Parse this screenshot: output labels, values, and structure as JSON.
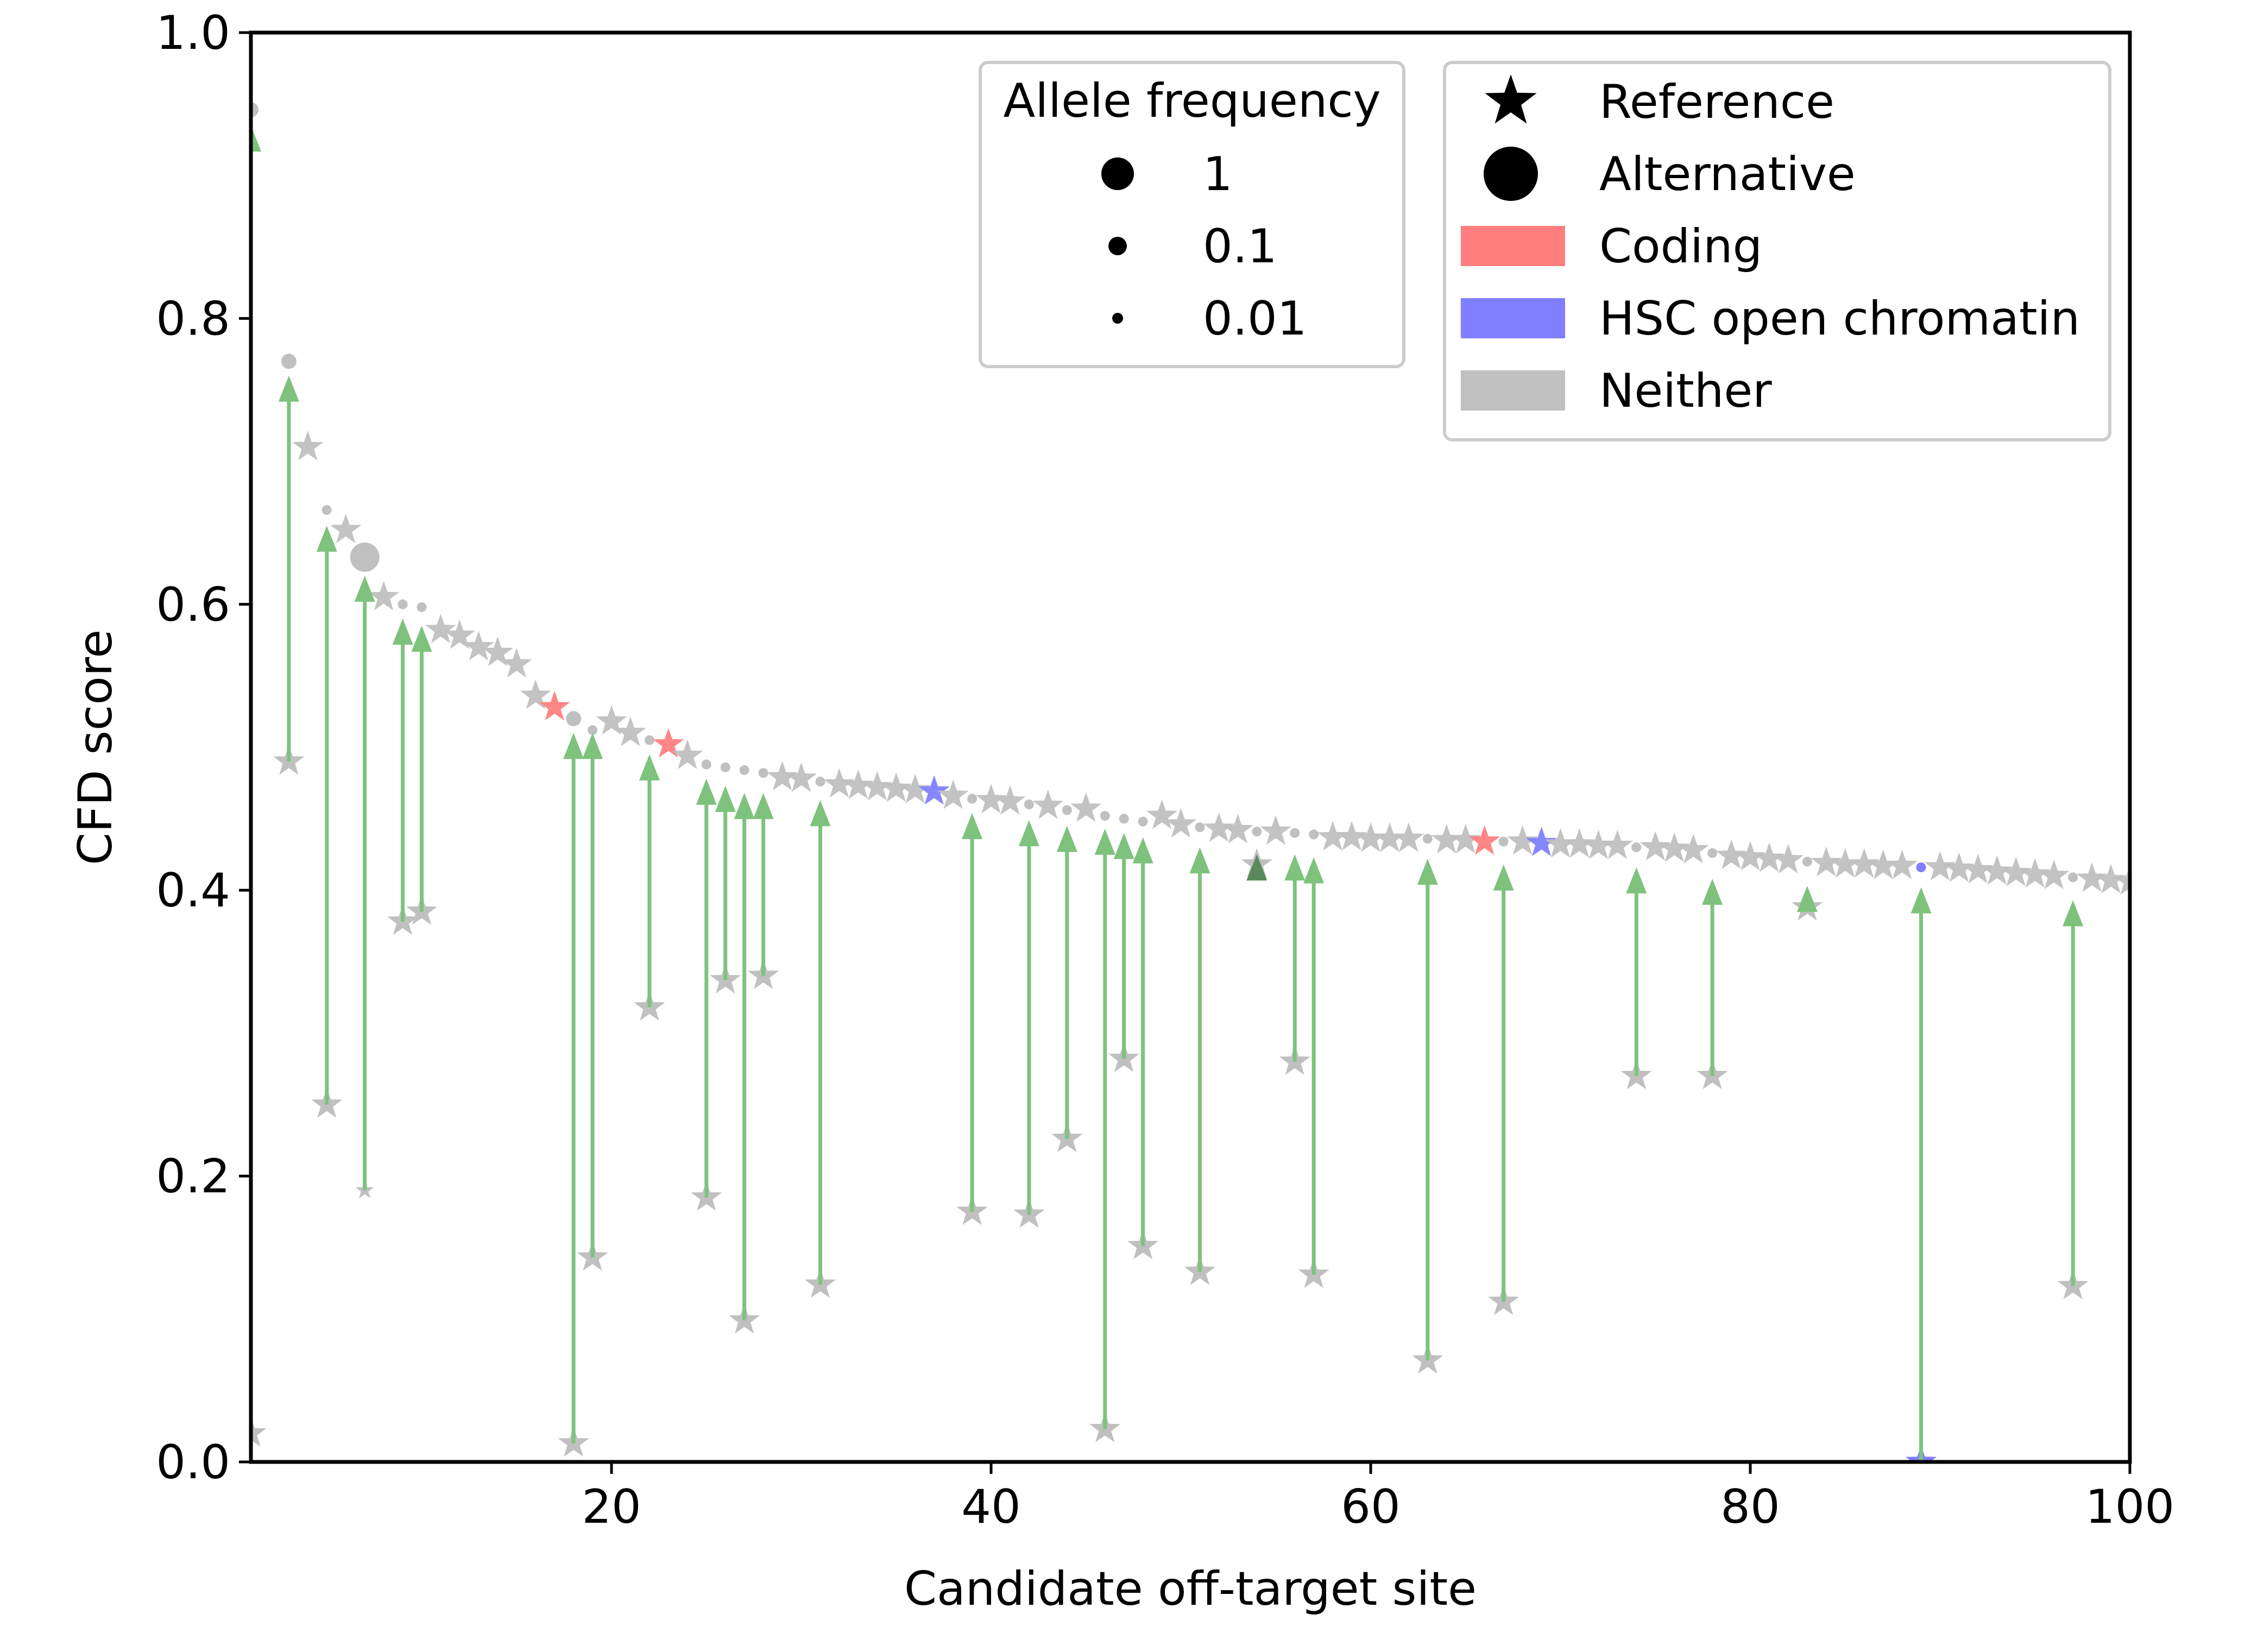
{
  "chart_data": {
    "type": "scatter",
    "title": "",
    "xlabel": "Candidate off-target site",
    "ylabel": "CFD score",
    "xlim": [
      1,
      100
    ],
    "ylim": [
      0.0,
      1.0
    ],
    "x_ticks": [
      20,
      40,
      60,
      80,
      100
    ],
    "x_tick_labels": [
      "20",
      "40",
      "60",
      "80",
      "100"
    ],
    "y_ticks": [
      0.0,
      0.2,
      0.4,
      0.6,
      0.8,
      1.0
    ],
    "y_tick_labels": [
      "0.0",
      "0.2",
      "0.4",
      "0.6",
      "0.8",
      "1.0"
    ],
    "grid": false,
    "legend_allele": {
      "title": "Allele frequency",
      "placement": "top-right",
      "entries": [
        {
          "label": "1",
          "af": 1
        },
        {
          "label": "0.1",
          "af": 0.1
        },
        {
          "label": "0.01",
          "af": 0.01
        }
      ]
    },
    "legend_markers": {
      "placement": "top-right",
      "markers": [
        {
          "label": "Reference",
          "shape": "star"
        },
        {
          "label": "Alternative",
          "shape": "circle"
        }
      ],
      "categories": [
        {
          "label": "Coding",
          "color": "#ff7f7f"
        },
        {
          "label": "HSC open chromatin",
          "color": "#7f7fff"
        },
        {
          "label": "Neither",
          "color": "#c0c0c0"
        }
      ]
    },
    "colors": {
      "neither": "#c0c0c0",
      "coding": "#ff7f7f",
      "hsc": "#7f7fff",
      "arrow": "#7ec27e",
      "axis": "#000000"
    },
    "reference_points": [
      {
        "x": 1,
        "y": 0.946,
        "cat": "neither",
        "af": 0.1,
        "shape": "circle"
      },
      {
        "x": 3,
        "y": 0.77,
        "cat": "neither",
        "af": 0.1,
        "shape": "circle"
      },
      {
        "x": 4,
        "y": 0.71,
        "cat": "neither",
        "shape": "star"
      },
      {
        "x": 5,
        "y": 0.666,
        "cat": "neither",
        "af": 0.01,
        "shape": "circle"
      },
      {
        "x": 6,
        "y": 0.652,
        "cat": "neither",
        "shape": "star"
      },
      {
        "x": 7,
        "y": 0.633,
        "cat": "neither",
        "af": 1,
        "shape": "circle"
      },
      {
        "x": 8,
        "y": 0.605,
        "cat": "neither",
        "shape": "star"
      },
      {
        "x": 9,
        "y": 0.6,
        "cat": "neither",
        "af": 0.01,
        "shape": "circle"
      },
      {
        "x": 10,
        "y": 0.598,
        "cat": "neither",
        "af": 0.01,
        "shape": "circle"
      },
      {
        "x": 11,
        "y": 0.582,
        "cat": "neither",
        "shape": "star"
      },
      {
        "x": 12,
        "y": 0.578,
        "cat": "neither",
        "shape": "star"
      },
      {
        "x": 13,
        "y": 0.57,
        "cat": "neither",
        "shape": "star"
      },
      {
        "x": 14,
        "y": 0.566,
        "cat": "neither",
        "shape": "star"
      },
      {
        "x": 15,
        "y": 0.558,
        "cat": "neither",
        "shape": "star"
      },
      {
        "x": 16,
        "y": 0.536,
        "cat": "neither",
        "shape": "star"
      },
      {
        "x": 17,
        "y": 0.528,
        "cat": "coding",
        "shape": "star"
      },
      {
        "x": 18,
        "y": 0.52,
        "cat": "neither",
        "af": 0.1,
        "shape": "circle"
      },
      {
        "x": 19,
        "y": 0.512,
        "cat": "neither",
        "af": 0.01,
        "shape": "circle"
      },
      {
        "x": 20,
        "y": 0.518,
        "cat": "neither",
        "shape": "star"
      },
      {
        "x": 21,
        "y": 0.51,
        "cat": "neither",
        "shape": "star"
      },
      {
        "x": 22,
        "y": 0.505,
        "cat": "neither",
        "af": 0.01,
        "shape": "circle"
      },
      {
        "x": 23,
        "y": 0.502,
        "cat": "coding",
        "shape": "star"
      },
      {
        "x": 24,
        "y": 0.494,
        "cat": "neither",
        "shape": "star"
      },
      {
        "x": 25,
        "y": 0.488,
        "cat": "neither",
        "af": 0.01,
        "shape": "circle"
      },
      {
        "x": 26,
        "y": 0.486,
        "cat": "neither",
        "af": 0.01,
        "shape": "circle"
      },
      {
        "x": 27,
        "y": 0.484,
        "cat": "neither",
        "af": 0.01,
        "shape": "circle"
      },
      {
        "x": 28,
        "y": 0.482,
        "cat": "neither",
        "af": 0.01,
        "shape": "circle"
      },
      {
        "x": 29,
        "y": 0.479,
        "cat": "neither",
        "shape": "star"
      },
      {
        "x": 30,
        "y": 0.478,
        "cat": "neither",
        "shape": "star"
      },
      {
        "x": 31,
        "y": 0.476,
        "cat": "neither",
        "af": 0.01,
        "shape": "circle"
      },
      {
        "x": 32,
        "y": 0.474,
        "cat": "neither",
        "shape": "star"
      },
      {
        "x": 33,
        "y": 0.473,
        "cat": "neither",
        "shape": "star"
      },
      {
        "x": 34,
        "y": 0.472,
        "cat": "neither",
        "shape": "star"
      },
      {
        "x": 35,
        "y": 0.471,
        "cat": "neither",
        "shape": "star"
      },
      {
        "x": 36,
        "y": 0.47,
        "cat": "neither",
        "shape": "star"
      },
      {
        "x": 37,
        "y": 0.469,
        "cat": "hsc",
        "shape": "star"
      },
      {
        "x": 38,
        "y": 0.466,
        "cat": "neither",
        "shape": "star"
      },
      {
        "x": 39,
        "y": 0.464,
        "cat": "neither",
        "af": 0.01,
        "shape": "circle"
      },
      {
        "x": 40,
        "y": 0.463,
        "cat": "neither",
        "shape": "star"
      },
      {
        "x": 41,
        "y": 0.462,
        "cat": "neither",
        "shape": "star"
      },
      {
        "x": 42,
        "y": 0.46,
        "cat": "neither",
        "af": 0.01,
        "shape": "circle"
      },
      {
        "x": 43,
        "y": 0.459,
        "cat": "neither",
        "shape": "star"
      },
      {
        "x": 44,
        "y": 0.456,
        "cat": "neither",
        "af": 0.01,
        "shape": "circle"
      },
      {
        "x": 45,
        "y": 0.457,
        "cat": "neither",
        "shape": "star"
      },
      {
        "x": 46,
        "y": 0.452,
        "cat": "neither",
        "af": 0.01,
        "shape": "circle"
      },
      {
        "x": 47,
        "y": 0.45,
        "cat": "neither",
        "af": 0.01,
        "shape": "circle"
      },
      {
        "x": 48,
        "y": 0.448,
        "cat": "neither",
        "af": 0.01,
        "shape": "circle"
      },
      {
        "x": 49,
        "y": 0.452,
        "cat": "neither",
        "shape": "star"
      },
      {
        "x": 50,
        "y": 0.446,
        "cat": "neither",
        "shape": "star"
      },
      {
        "x": 51,
        "y": 0.444,
        "cat": "neither",
        "af": 0.01,
        "shape": "circle"
      },
      {
        "x": 52,
        "y": 0.443,
        "cat": "neither",
        "shape": "star"
      },
      {
        "x": 53,
        "y": 0.442,
        "cat": "neither",
        "shape": "star"
      },
      {
        "x": 54,
        "y": 0.441,
        "cat": "neither",
        "af": 0.01,
        "shape": "circle"
      },
      {
        "x": 55,
        "y": 0.441,
        "cat": "neither",
        "shape": "star"
      },
      {
        "x": 56,
        "y": 0.44,
        "cat": "neither",
        "af": 0.01,
        "shape": "circle"
      },
      {
        "x": 57,
        "y": 0.439,
        "cat": "neither",
        "af": 0.01,
        "shape": "circle"
      },
      {
        "x": 58,
        "y": 0.437,
        "cat": "neither",
        "shape": "star"
      },
      {
        "x": 59,
        "y": 0.437,
        "cat": "neither",
        "shape": "star"
      },
      {
        "x": 60,
        "y": 0.436,
        "cat": "neither",
        "shape": "star"
      },
      {
        "x": 61,
        "y": 0.436,
        "cat": "neither",
        "shape": "star"
      },
      {
        "x": 62,
        "y": 0.436,
        "cat": "neither",
        "shape": "star"
      },
      {
        "x": 63,
        "y": 0.436,
        "cat": "neither",
        "af": 0.01,
        "shape": "circle"
      },
      {
        "x": 64,
        "y": 0.435,
        "cat": "neither",
        "shape": "star"
      },
      {
        "x": 65,
        "y": 0.435,
        "cat": "neither",
        "shape": "star"
      },
      {
        "x": 66,
        "y": 0.434,
        "cat": "coding",
        "shape": "star"
      },
      {
        "x": 67,
        "y": 0.434,
        "cat": "neither",
        "af": 0.01,
        "shape": "circle"
      },
      {
        "x": 68,
        "y": 0.434,
        "cat": "neither",
        "shape": "star"
      },
      {
        "x": 69,
        "y": 0.433,
        "cat": "hsc",
        "shape": "star"
      },
      {
        "x": 70,
        "y": 0.432,
        "cat": "neither",
        "shape": "star"
      },
      {
        "x": 71,
        "y": 0.432,
        "cat": "neither",
        "shape": "star"
      },
      {
        "x": 72,
        "y": 0.431,
        "cat": "neither",
        "shape": "star"
      },
      {
        "x": 73,
        "y": 0.431,
        "cat": "neither",
        "shape": "star"
      },
      {
        "x": 74,
        "y": 0.43,
        "cat": "neither",
        "af": 0.01,
        "shape": "circle"
      },
      {
        "x": 75,
        "y": 0.43,
        "cat": "neither",
        "shape": "star"
      },
      {
        "x": 76,
        "y": 0.429,
        "cat": "neither",
        "shape": "star"
      },
      {
        "x": 77,
        "y": 0.428,
        "cat": "neither",
        "shape": "star"
      },
      {
        "x": 78,
        "y": 0.426,
        "cat": "neither",
        "af": 0.01,
        "shape": "circle"
      },
      {
        "x": 79,
        "y": 0.424,
        "cat": "neither",
        "shape": "star"
      },
      {
        "x": 80,
        "y": 0.423,
        "cat": "neither",
        "shape": "star"
      },
      {
        "x": 81,
        "y": 0.422,
        "cat": "neither",
        "shape": "star"
      },
      {
        "x": 82,
        "y": 0.421,
        "cat": "neither",
        "shape": "star"
      },
      {
        "x": 83,
        "y": 0.42,
        "cat": "neither",
        "af": 0.01,
        "shape": "circle"
      },
      {
        "x": 84,
        "y": 0.419,
        "cat": "neither",
        "shape": "star"
      },
      {
        "x": 85,
        "y": 0.418,
        "cat": "neither",
        "shape": "star"
      },
      {
        "x": 86,
        "y": 0.418,
        "cat": "neither",
        "shape": "star"
      },
      {
        "x": 87,
        "y": 0.417,
        "cat": "neither",
        "shape": "star"
      },
      {
        "x": 88,
        "y": 0.417,
        "cat": "neither",
        "shape": "star"
      },
      {
        "x": 89,
        "y": 0.416,
        "cat": "hsc",
        "af": 0.01,
        "shape": "circle"
      },
      {
        "x": 90,
        "y": 0.416,
        "cat": "neither",
        "shape": "star"
      },
      {
        "x": 91,
        "y": 0.415,
        "cat": "neither",
        "shape": "star"
      },
      {
        "x": 92,
        "y": 0.414,
        "cat": "neither",
        "shape": "star"
      },
      {
        "x": 93,
        "y": 0.413,
        "cat": "neither",
        "shape": "star"
      },
      {
        "x": 94,
        "y": 0.412,
        "cat": "neither",
        "shape": "star"
      },
      {
        "x": 95,
        "y": 0.411,
        "cat": "neither",
        "shape": "star"
      },
      {
        "x": 96,
        "y": 0.41,
        "cat": "neither",
        "shape": "star"
      },
      {
        "x": 97,
        "y": 0.409,
        "cat": "neither",
        "af": 0.01,
        "shape": "circle"
      },
      {
        "x": 98,
        "y": 0.408,
        "cat": "neither",
        "shape": "star"
      },
      {
        "x": 99,
        "y": 0.407,
        "cat": "neither",
        "shape": "star"
      },
      {
        "x": 100,
        "y": 0.406,
        "cat": "neither",
        "shape": "star"
      }
    ],
    "variants": [
      {
        "x": 1,
        "ref": 0.02,
        "alt": 0.935
      },
      {
        "x": 3,
        "ref": 0.49,
        "alt": 0.76
      },
      {
        "x": 5,
        "ref": 0.25,
        "alt": 0.655
      },
      {
        "x": 7,
        "ref": 0.19,
        "alt": 0.62
      },
      {
        "x": 9,
        "ref": 0.378,
        "alt": 0.59
      },
      {
        "x": 10,
        "ref": 0.385,
        "alt": 0.585
      },
      {
        "x": 18,
        "ref": 0.013,
        "alt": 0.51
      },
      {
        "x": 19,
        "ref": 0.143,
        "alt": 0.51
      },
      {
        "x": 22,
        "ref": 0.318,
        "alt": 0.495
      },
      {
        "x": 25,
        "ref": 0.185,
        "alt": 0.478
      },
      {
        "x": 26,
        "ref": 0.337,
        "alt": 0.473
      },
      {
        "x": 27,
        "ref": 0.099,
        "alt": 0.468
      },
      {
        "x": 28,
        "ref": 0.34,
        "alt": 0.468
      },
      {
        "x": 31,
        "ref": 0.124,
        "alt": 0.463
      },
      {
        "x": 39,
        "ref": 0.175,
        "alt": 0.454
      },
      {
        "x": 42,
        "ref": 0.173,
        "alt": 0.449
      },
      {
        "x": 44,
        "ref": 0.226,
        "alt": 0.445
      },
      {
        "x": 46,
        "ref": 0.023,
        "alt": 0.443
      },
      {
        "x": 47,
        "ref": 0.282,
        "alt": 0.44
      },
      {
        "x": 48,
        "ref": 0.151,
        "alt": 0.437
      },
      {
        "x": 51,
        "ref": 0.133,
        "alt": 0.43
      },
      {
        "x": 54,
        "ref": 0.418,
        "alt": 0.425,
        "dark": true
      },
      {
        "x": 56,
        "ref": 0.28,
        "alt": 0.425
      },
      {
        "x": 57,
        "ref": 0.131,
        "alt": 0.423
      },
      {
        "x": 63,
        "ref": 0.071,
        "alt": 0.422
      },
      {
        "x": 67,
        "ref": 0.112,
        "alt": 0.418
      },
      {
        "x": 74,
        "ref": 0.27,
        "alt": 0.416
      },
      {
        "x": 78,
        "ref": 0.27,
        "alt": 0.408
      },
      {
        "x": 83,
        "ref": 0.388,
        "alt": 0.403
      },
      {
        "x": 89,
        "ref": 0.0,
        "alt": 0.402,
        "ref_cat": "hsc"
      },
      {
        "x": 97,
        "ref": 0.123,
        "alt": 0.393
      }
    ]
  }
}
